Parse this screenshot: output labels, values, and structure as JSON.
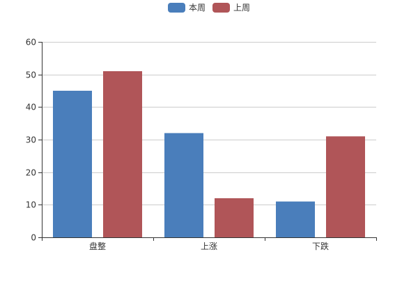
{
  "chart_data": {
    "type": "bar",
    "categories": [
      "盘整",
      "上涨",
      "下跌"
    ],
    "series": [
      {
        "name": "本周",
        "values": [
          45,
          32,
          11
        ],
        "color": "#4a7ebb"
      },
      {
        "name": "上周",
        "values": [
          51,
          12,
          31
        ],
        "color": "#b05558"
      }
    ],
    "ylim": [
      0,
      60
    ],
    "yticks": [
      0,
      10,
      20,
      30,
      40,
      50,
      60
    ],
    "grid": true,
    "legend": "top-center",
    "title": "",
    "xlabel": "",
    "ylabel": ""
  }
}
